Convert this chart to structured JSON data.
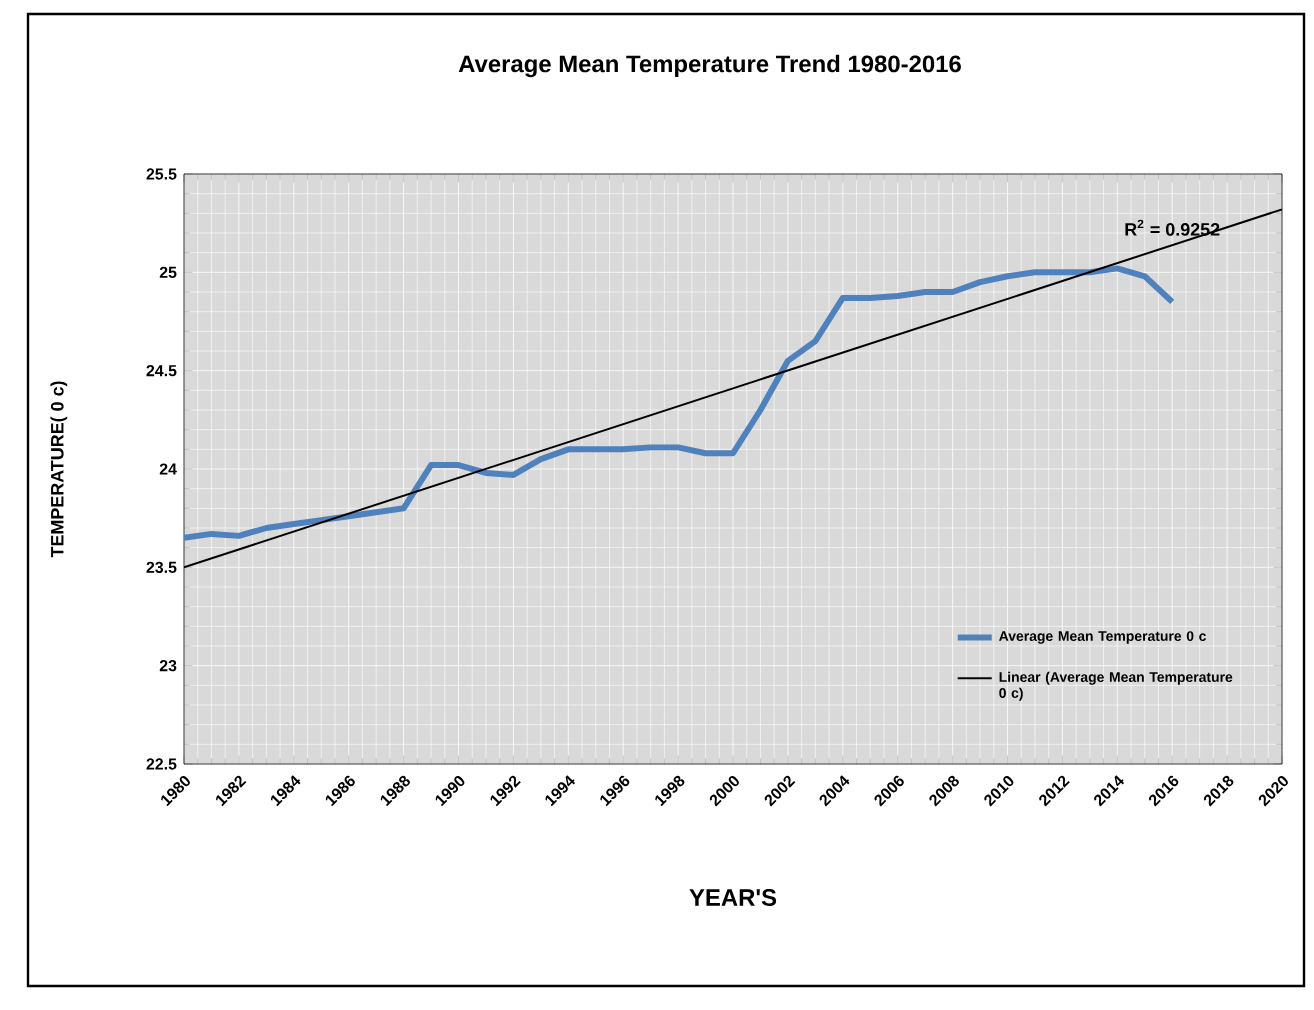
{
  "chart_data": {
    "type": "line",
    "title": "Average Mean Temperature Trend 1980-2016",
    "xlabel": "YEAR'S",
    "ylabel": "TEMPERATURE( 0 c)",
    "x": [
      1980,
      1981,
      1982,
      1983,
      1984,
      1985,
      1986,
      1987,
      1988,
      1989,
      1990,
      1991,
      1992,
      1993,
      1994,
      1995,
      1996,
      1997,
      1998,
      1999,
      2000,
      2001,
      2002,
      2003,
      2004,
      2005,
      2006,
      2007,
      2008,
      2009,
      2010,
      2011,
      2012,
      2013,
      2014,
      2015,
      2016
    ],
    "series": [
      {
        "name": "Average Mean Temperature 0 c",
        "color": "#4f81bd",
        "values": [
          23.65,
          23.67,
          23.66,
          23.7,
          23.72,
          23.74,
          23.76,
          23.78,
          23.8,
          24.02,
          24.02,
          23.98,
          23.97,
          24.05,
          24.1,
          24.1,
          24.1,
          24.11,
          24.11,
          24.08,
          24.08,
          24.3,
          24.55,
          24.65,
          24.87,
          24.87,
          24.88,
          24.9,
          24.9,
          24.95,
          24.98,
          25.0,
          25.0,
          25.0,
          25.02,
          24.98,
          24.85
        ]
      },
      {
        "name": "Linear (Average Mean Temperature 0 c)",
        "type": "line",
        "color": "#000000",
        "x": [
          1980,
          2020
        ],
        "values": [
          23.5,
          25.32
        ]
      }
    ],
    "annotations": [
      {
        "text": "R$^{2}$ = 0.9252",
        "x": 2016,
        "y": 25.15
      }
    ],
    "xlim": [
      1980,
      2020
    ],
    "ylim": [
      22.5,
      25.5
    ],
    "xticks": [
      1980,
      1982,
      1984,
      1986,
      1988,
      1990,
      1992,
      1994,
      1996,
      1998,
      2000,
      2002,
      2004,
      2006,
      2008,
      2010,
      2012,
      2014,
      2016,
      2018,
      2020
    ],
    "yticks": [
      22.5,
      23,
      23.5,
      24,
      24.5,
      25,
      25.5
    ],
    "grid": true,
    "legend": "bottom right"
  }
}
